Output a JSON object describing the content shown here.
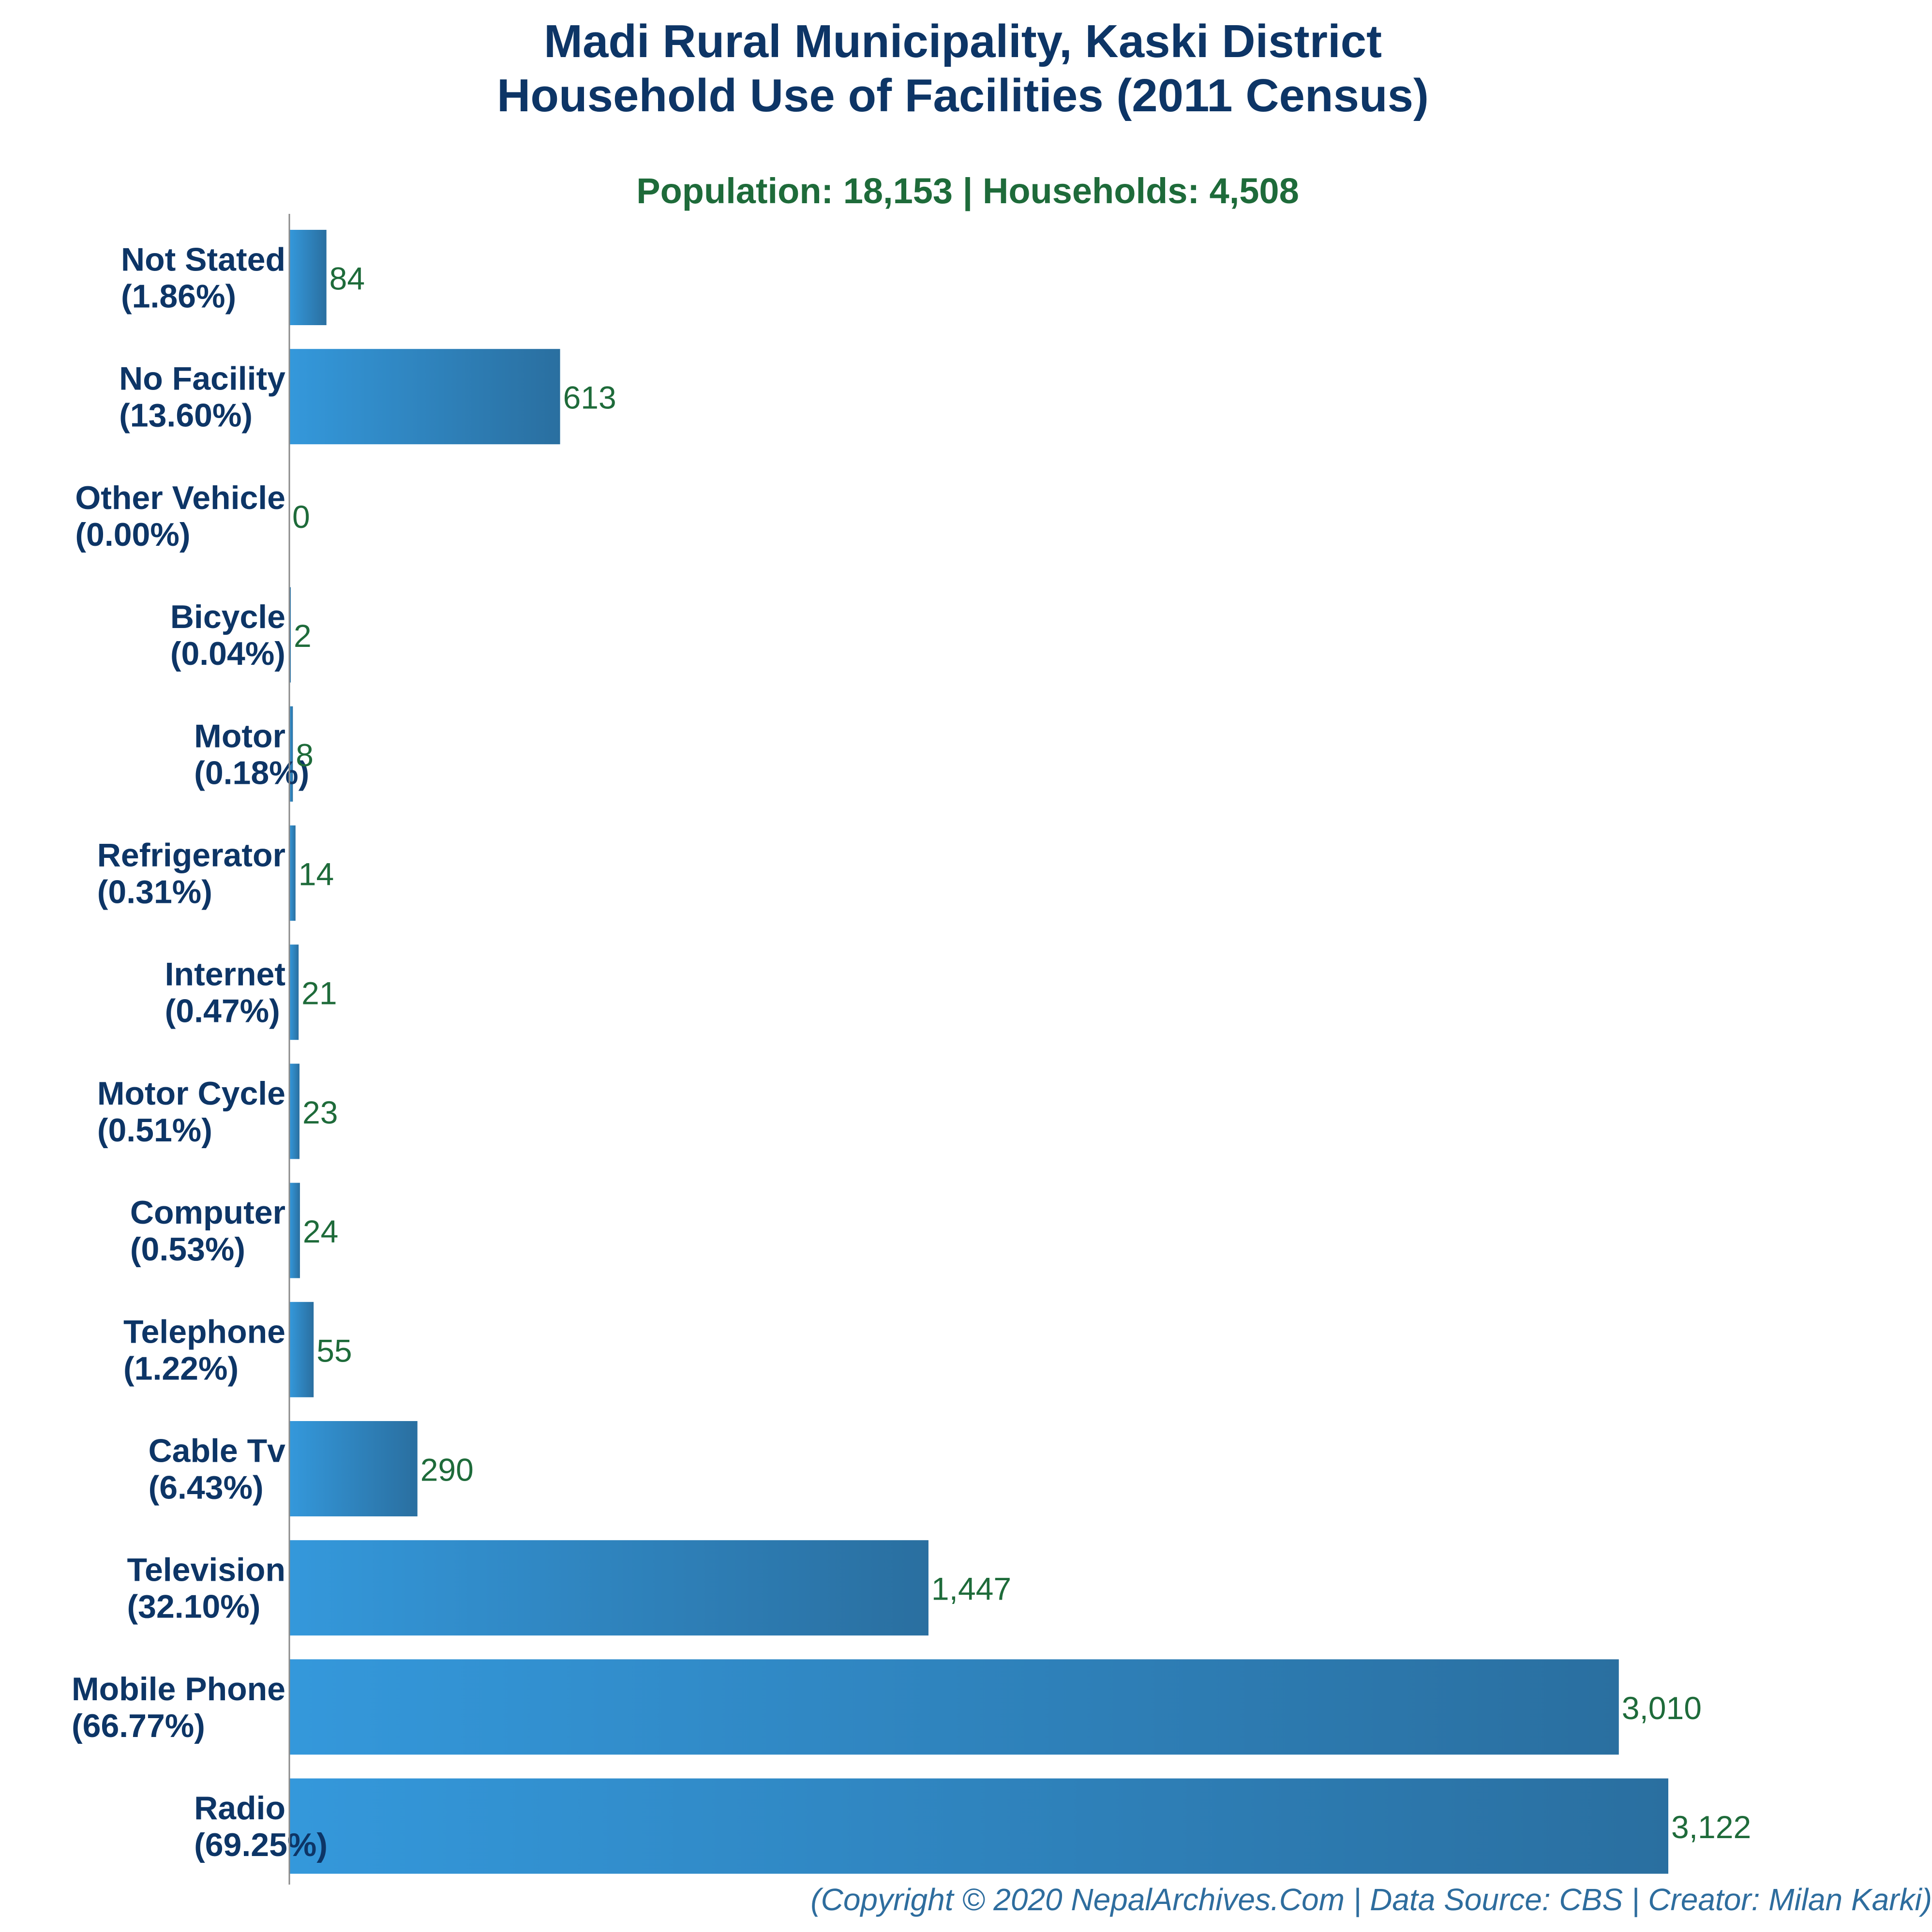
{
  "title_line1": "Madi Rural Municipality, Kaski District",
  "title_line2": "Household Use of Facilities (2011 Census)",
  "subtitle": "Population: 18,153 | Households: 4,508",
  "footer": "(Copyright © 2020 NepalArchives.Com | Data Source: CBS | Creator: Milan Karki)",
  "colors": {
    "bar_light": "#3498db",
    "bar_dark": "#2a6fa0",
    "axis": "#8a8a8a"
  },
  "chart_data": {
    "type": "bar",
    "orientation": "horizontal",
    "categories": [
      "Not Stated",
      "No Facility",
      "Other Vehicle",
      "Bicycle",
      "Motor",
      "Refrigerator",
      "Internet",
      "Motor Cycle",
      "Computer",
      "Telephone",
      "Cable Tv",
      "Television",
      "Mobile Phone",
      "Radio"
    ],
    "percent_labels": [
      "(1.86%)",
      "(13.60%)",
      "(0.00%)",
      "(0.04%)",
      "(0.18%)",
      "(0.31%)",
      "(0.47%)",
      "(0.51%)",
      "(0.53%)",
      "(1.22%)",
      "(6.43%)",
      "(32.10%)",
      "(66.77%)",
      "(69.25%)"
    ],
    "values": [
      84,
      613,
      0,
      2,
      8,
      14,
      21,
      23,
      24,
      55,
      290,
      1447,
      3010,
      3122
    ],
    "value_labels": [
      "84",
      "613",
      "0",
      "2",
      "8",
      "14",
      "21",
      "23",
      "24",
      "55",
      "290",
      "1,447",
      "3,010",
      "3,122"
    ],
    "xlim": [
      0,
      3122
    ],
    "grid": false,
    "legend": "none"
  }
}
